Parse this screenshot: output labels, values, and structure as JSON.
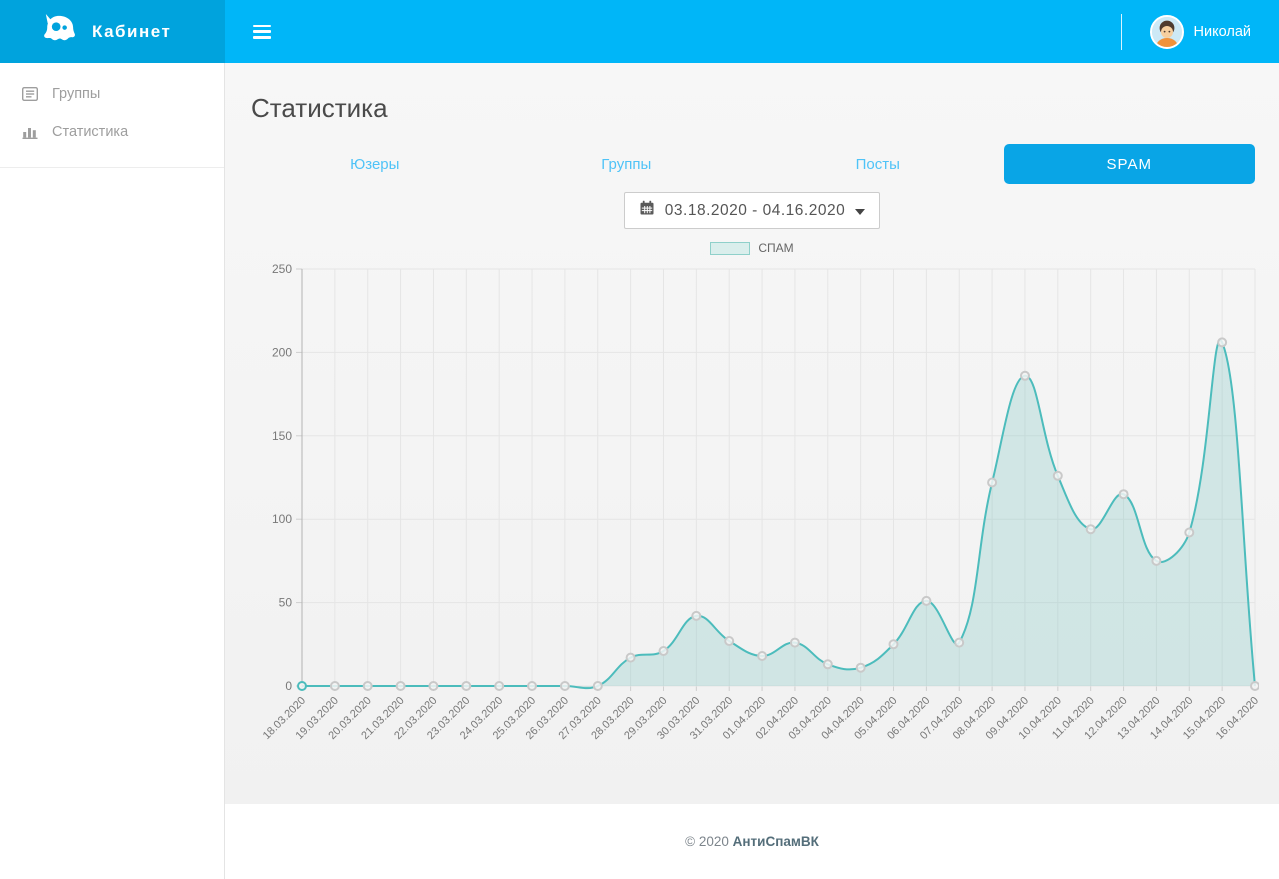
{
  "header": {
    "brand": "Кабинет",
    "user_name": "Николай"
  },
  "sidebar": {
    "items": [
      {
        "label": "Группы",
        "icon": "list-icon"
      },
      {
        "label": "Статистика",
        "icon": "bar-chart-icon"
      }
    ]
  },
  "main": {
    "title": "Статистика",
    "tabs": [
      {
        "label": "Юзеры",
        "active": false
      },
      {
        "label": "Группы",
        "active": false
      },
      {
        "label": "Посты",
        "active": false
      },
      {
        "label": "SPAM",
        "active": true
      }
    ],
    "date_range": "03.18.2020 - 04.16.2020"
  },
  "footer": {
    "copyright": "© 2020",
    "brand_link": "АнтиСпамВК"
  },
  "colors": {
    "brand_bar": "#00a3dd",
    "top_bar": "#00b6f8",
    "tab_text": "#4fc3f7",
    "active_tab_bg": "#09a5e6",
    "content_bg": "#f7f7f7",
    "footer_link": "#546e7a"
  },
  "chart_data": {
    "type": "area",
    "title": "",
    "xlabel": "",
    "ylabel": "",
    "categories": [
      "18.03.2020",
      "19.03.2020",
      "20.03.2020",
      "21.03.2020",
      "22.03.2020",
      "23.03.2020",
      "24.03.2020",
      "25.03.2020",
      "26.03.2020",
      "27.03.2020",
      "28.03.2020",
      "29.03.2020",
      "30.03.2020",
      "31.03.2020",
      "01.04.2020",
      "02.04.2020",
      "03.04.2020",
      "04.04.2020",
      "05.04.2020",
      "06.04.2020",
      "07.04.2020",
      "08.04.2020",
      "09.04.2020",
      "10.04.2020",
      "11.04.2020",
      "12.04.2020",
      "13.04.2020",
      "14.04.2020",
      "15.04.2020",
      "16.04.2020"
    ],
    "series": [
      {
        "name": "СПАМ",
        "values": [
          0,
          0,
          0,
          0,
          0,
          0,
          0,
          0,
          0,
          0,
          17,
          21,
          42,
          27,
          18,
          26,
          13,
          11,
          25,
          51,
          26,
          122,
          186,
          126,
          94,
          115,
          75,
          92,
          206,
          0
        ]
      }
    ],
    "ylim": [
      0,
      250
    ],
    "ytick_step": 50,
    "grid": true,
    "legend_position": "top",
    "line_color": "#4cbcbc",
    "fill_color": "#66bbb73d",
    "point_color": "#c9c9c9"
  }
}
